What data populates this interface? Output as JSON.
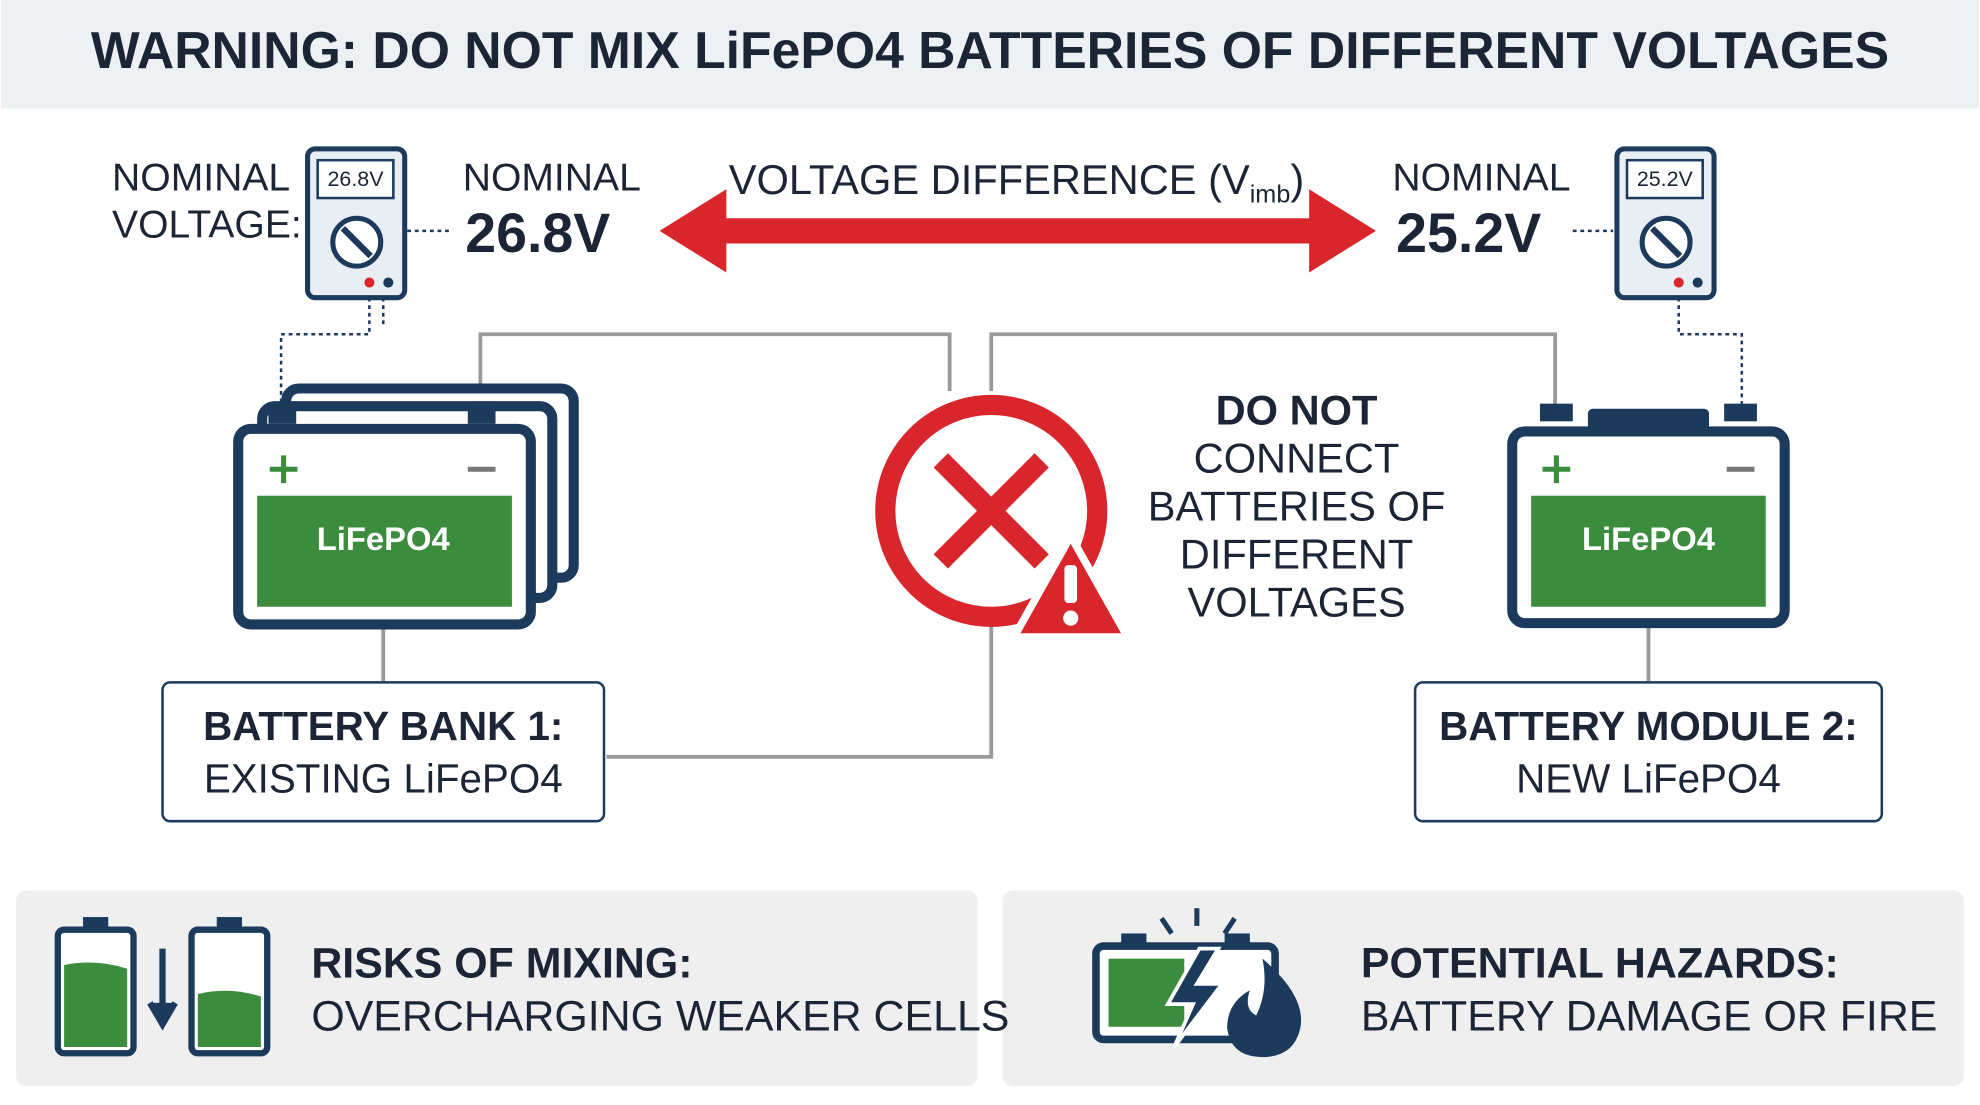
{
  "header": {
    "title": "WARNING: DO NOT MIX LiFePO4 BATTERIES OF DIFFERENT VOLTAGES"
  },
  "left": {
    "meter_label": [
      "NOMINAL",
      "VOLTAGE:"
    ],
    "meter_display": "26.8V",
    "nominal_label": "NOMINAL",
    "nominal_value": "26.8V",
    "battery_label": "LiFePO4",
    "box": [
      "BATTERY BANK 1:",
      "EXISTING LiFePO4"
    ]
  },
  "right": {
    "meter_display": "25.2V",
    "nominal_label": "NOMINAL",
    "nominal_value": "25.2V",
    "battery_label": "LiFePO4",
    "box": [
      "BATTERY MODULE 2:",
      "NEW LiFePO4"
    ]
  },
  "arrow_label": {
    "text": "VOLTAGE DIFFERENCE (V",
    "subscript": "imb",
    "close": ")"
  },
  "warning": {
    "heading": "DO NOT",
    "lines": [
      "CONNECT",
      "BATTERIES OF",
      "DIFFERENT",
      "VOLTAGES"
    ]
  },
  "panels": [
    {
      "heading": "RISKS OF MIXING:",
      "text": "OVERCHARGING WEAKER CELLS"
    },
    {
      "heading": "POTENTIAL HAZARDS:",
      "text": "BATTERY DAMAGE OR FIRE"
    }
  ]
}
